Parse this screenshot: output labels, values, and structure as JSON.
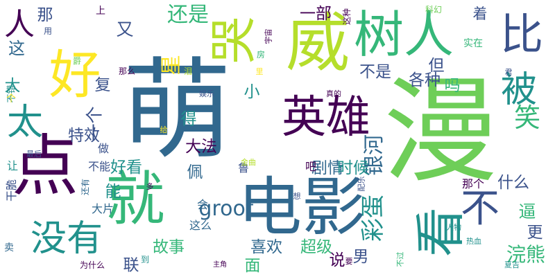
{
  "palette": {
    "dark_purple": "#440154",
    "indigo": "#3b528b",
    "blue": "#31688e",
    "teal": "#21918c",
    "green": "#35b779",
    "light_green": "#6ece58",
    "yellow_green": "#b5de2b",
    "yellow": "#fde725"
  },
  "words": [
    {
      "text": "萌",
      "color": "#31688e",
      "vertical": false
    },
    {
      "text": "漫",
      "color": "#6ece58",
      "vertical": false
    },
    {
      "text": "电影",
      "color": "#31688e",
      "vertical": false
    },
    {
      "text": "威",
      "color": "#b5de2b",
      "vertical": false
    },
    {
      "text": "树人",
      "color": "#35b779",
      "vertical": false
    },
    {
      "text": "英雄",
      "color": "#440154",
      "vertical": false
    },
    {
      "text": "点",
      "color": "#440154",
      "vertical": false
    },
    {
      "text": "就",
      "color": "#35b779",
      "vertical": false
    },
    {
      "text": "看",
      "color": "#21918c",
      "vertical": true
    },
    {
      "text": "好",
      "color": "#fde725",
      "vertical": false
    },
    {
      "text": "没有",
      "color": "#21918c",
      "vertical": false
    },
    {
      "text": "比",
      "color": "#3b528b",
      "vertical": false
    },
    {
      "text": "被",
      "color": "#21918c",
      "vertical": false
    },
    {
      "text": "不",
      "color": "#3b528b",
      "vertical": false
    },
    {
      "text": "人",
      "color": "#440154",
      "vertical": false
    },
    {
      "text": "太",
      "color": "#21918c",
      "vertical": false
    },
    {
      "text": "笑",
      "color": "#35b779",
      "vertical": false
    },
    {
      "text": "哭",
      "color": "#b5de2b",
      "vertical": true
    },
    {
      "text": "星",
      "color": "#fde725",
      "vertical": true
    },
    {
      "text": "还是",
      "color": "#35b779",
      "vertical": false
    },
    {
      "text": "groot",
      "color": "#31688e",
      "vertical": false
    },
    {
      "text": "彩蛋",
      "color": "#21918c",
      "vertical": true
    },
    {
      "text": "银河",
      "color": "#31688e",
      "vertical": true
    },
    {
      "text": "剧情",
      "color": "#31688e",
      "vertical": false
    },
    {
      "text": "时候",
      "color": "#21918c",
      "vertical": false
    },
    {
      "text": "好看",
      "color": "#21918c",
      "vertical": false
    },
    {
      "text": "一部",
      "color": "#440154",
      "vertical": false
    },
    {
      "text": "各种",
      "color": "#3b528b",
      "vertical": false
    },
    {
      "text": "喜欢",
      "color": "#31688e",
      "vertical": false
    },
    {
      "text": "超级",
      "color": "#35b779",
      "vertical": false
    },
    {
      "text": "故事",
      "color": "#35b779",
      "vertical": false
    },
    {
      "text": "浣熊",
      "color": "#35b779",
      "vertical": false
    },
    {
      "text": "逼",
      "color": "#35b779",
      "vertical": false
    },
    {
      "text": "大法",
      "color": "#440154",
      "vertical": false
    },
    {
      "text": "特效",
      "color": "#3b528b",
      "vertical": false
    },
    {
      "text": "得",
      "color": "#21918c",
      "vertical": false
    },
    {
      "text": "佩",
      "color": "#31688e",
      "vertical": false
    },
    {
      "text": "能",
      "color": "#21918c",
      "vertical": false
    },
    {
      "text": "这",
      "color": "#31688e",
      "vertical": false
    },
    {
      "text": "但",
      "color": "#3b528b",
      "vertical": false
    },
    {
      "text": "吗",
      "color": "#35b779",
      "vertical": false
    },
    {
      "text": "那",
      "color": "#3b528b",
      "vertical": false
    },
    {
      "text": "男",
      "color": "#3b528b",
      "vertical": false
    },
    {
      "text": "更",
      "color": "#3b528b",
      "vertical": false
    },
    {
      "text": "小",
      "color": "#21918c",
      "vertical": false
    },
    {
      "text": "又",
      "color": "#3b528b",
      "vertical": false
    },
    {
      "text": "一个",
      "color": "#3b528b",
      "vertical": true
    },
    {
      "text": "什么",
      "color": "#3b528b",
      "vertical": false
    },
    {
      "text": "不是",
      "color": "#3b528b",
      "vertical": false
    },
    {
      "text": "大",
      "color": "#21918c",
      "vertical": false
    },
    {
      "text": "复",
      "color": "#3b528b",
      "vertical": false
    },
    {
      "text": "面",
      "color": "#35b779",
      "vertical": false
    },
    {
      "text": "联",
      "color": "#3b528b",
      "vertical": false
    },
    {
      "text": "说",
      "color": "#440154",
      "vertical": false
    },
    {
      "text": "着",
      "color": "#3b528b",
      "vertical": false
    },
    {
      "text": "会",
      "color": "#31688e",
      "vertical": false
    },
    {
      "text": "这么",
      "color": "#31688e",
      "vertical": false
    },
    {
      "text": "吧",
      "color": "#440154",
      "vertical": false
    },
    {
      "text": "鲁",
      "color": "#3b528b",
      "vertical": false
    },
    {
      "text": "那个",
      "color": "#440154",
      "vertical": false
    },
    {
      "text": "大片",
      "color": "#31688e",
      "vertical": false
    },
    {
      "text": "干脆",
      "color": "#3b528b",
      "vertical": true
    },
    {
      "text": "让",
      "color": "#21918c",
      "vertical": false
    },
    {
      "text": "做",
      "color": "#3b528b",
      "vertical": false
    },
    {
      "text": "不能",
      "color": "#3b528b",
      "vertical": false
    },
    {
      "text": "还有",
      "color": "#31688e",
      "vertical": true
    },
    {
      "text": "卖",
      "color": "#31688e",
      "vertical": false
    },
    {
      "text": "为什么",
      "color": "#440154",
      "vertical": false
    },
    {
      "text": "主角",
      "color": "#440154",
      "vertical": false
    },
    {
      "text": "到",
      "color": "#21918c",
      "vertical": false
    },
    {
      "text": "要",
      "color": "#440154",
      "vertical": false
    },
    {
      "text": "不过",
      "color": "#35b779",
      "vertical": true
    },
    {
      "text": "夏吉",
      "color": "#21918c",
      "vertical": false
    },
    {
      "text": "热血",
      "color": "#21918c",
      "vertical": false
    },
    {
      "text": "人物",
      "color": "#21918c",
      "vertical": false
    },
    {
      "text": "想",
      "color": "#3b528b",
      "vertical": false
    },
    {
      "text": "配乐",
      "color": "#3b528b",
      "vertical": true
    },
    {
      "text": "多",
      "color": "#440154",
      "vertical": false
    },
    {
      "text": "金曲",
      "color": "#b5de2b",
      "vertical": false
    },
    {
      "text": "最后",
      "color": "#3b528b",
      "vertical": false
    },
    {
      "text": "给",
      "color": "#fde725",
      "vertical": false
    },
    {
      "text": "娱乐",
      "color": "#3b528b",
      "vertical": false
    },
    {
      "text": "泪",
      "color": "#b5de2b",
      "vertical": false
    },
    {
      "text": "那么",
      "color": "#440154",
      "vertical": false
    },
    {
      "text": "爵",
      "color": "#6ece58",
      "vertical": false
    },
    {
      "text": "不错",
      "color": "#21918c",
      "vertical": true
    },
    {
      "text": "个",
      "color": "#fde725",
      "vertical": false
    },
    {
      "text": "用",
      "color": "#3b528b",
      "vertical": false
    },
    {
      "text": "上",
      "color": "#440154",
      "vertical": false
    },
    {
      "text": "宇宙",
      "color": "#440154",
      "vertical": true
    },
    {
      "text": "房",
      "color": "#35b779",
      "vertical": false
    },
    {
      "text": "里",
      "color": "#fde725",
      "vertical": false
    },
    {
      "text": "真的",
      "color": "#440154",
      "vertical": false
    },
    {
      "text": "这种",
      "color": "#440154",
      "vertical": true
    },
    {
      "text": "实在",
      "color": "#35b779",
      "vertical": false
    },
    {
      "text": "科幻",
      "color": "#6ece58",
      "vertical": false
    },
    {
      "text": "君",
      "color": "#3b528b",
      "vertical": false
    }
  ]
}
